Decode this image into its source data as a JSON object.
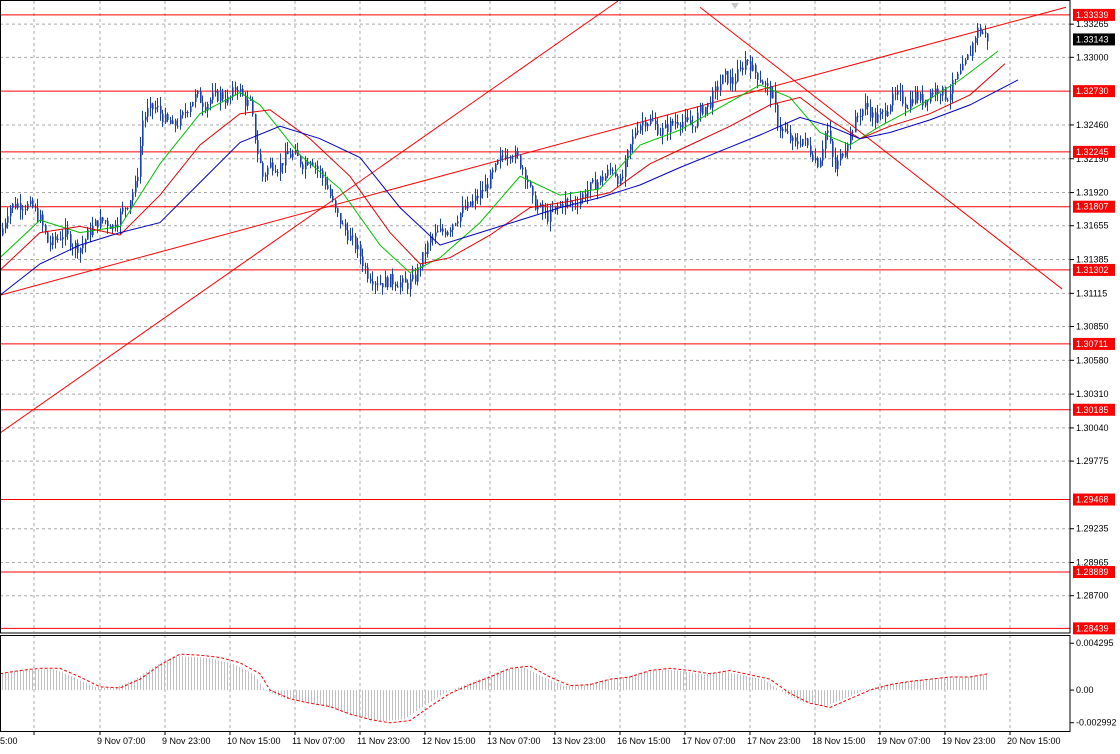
{
  "chart_data": {
    "type": "candlestick",
    "price_axis": {
      "ticks": [
        "1.33265",
        "1.33000",
        "1.32460",
        "1.32190",
        "1.31920",
        "1.31655",
        "1.31385",
        "1.31115",
        "1.30850",
        "1.30580",
        "1.30310",
        "1.30040",
        "1.29775",
        "1.29235",
        "1.28965",
        "1.28700"
      ],
      "ylim": [
        1.2841,
        1.3345
      ]
    },
    "current_price": "1.33143",
    "levels": [
      {
        "label": "1.33339",
        "value": 1.33339
      },
      {
        "label": "1.32730",
        "value": 1.3273
      },
      {
        "label": "1.32245",
        "value": 1.32245
      },
      {
        "label": "1.31807",
        "value": 1.31807
      },
      {
        "label": "1.31302",
        "value": 1.31302
      },
      {
        "label": "1.30711",
        "value": 1.30711
      },
      {
        "label": "1.30185",
        "value": 1.30185
      },
      {
        "label": "1.29468",
        "value": 1.29468
      },
      {
        "label": "1.28889",
        "value": 1.28889
      },
      {
        "label": "1.28439",
        "value": 1.28439
      }
    ],
    "time_axis": [
      "5:00",
      "9 Nov 07:00",
      "9 Nov 23:00",
      "10 Nov 15:00",
      "11 Nov 07:00",
      "11 Nov 23:00",
      "12 Nov 15:00",
      "13 Nov 07:00",
      "13 Nov 23:00",
      "16 Nov 15:00",
      "17 Nov 07:00",
      "17 Nov 23:00",
      "18 Nov 15:00",
      "19 Nov 07:00",
      "19 Nov 23:00",
      "20 Nov 15:00"
    ],
    "close_path": [
      [
        0,
        1.3158
      ],
      [
        8,
        1.318
      ],
      [
        16,
        1.3183
      ],
      [
        24,
        1.3182
      ],
      [
        32,
        1.318
      ],
      [
        40,
        1.317
      ],
      [
        48,
        1.315
      ],
      [
        56,
        1.3155
      ],
      [
        64,
        1.316
      ],
      [
        72,
        1.315
      ],
      [
        80,
        1.3148
      ],
      [
        88,
        1.316
      ],
      [
        96,
        1.3168
      ],
      [
        104,
        1.317
      ],
      [
        112,
        1.3165
      ],
      [
        120,
        1.3175
      ],
      [
        128,
        1.3185
      ],
      [
        136,
        1.32
      ],
      [
        142,
        1.325
      ],
      [
        148,
        1.3258
      ],
      [
        156,
        1.326
      ],
      [
        164,
        1.325
      ],
      [
        172,
        1.3245
      ],
      [
        180,
        1.325
      ],
      [
        188,
        1.3262
      ],
      [
        196,
        1.327
      ],
      [
        204,
        1.3262
      ],
      [
        212,
        1.3268
      ],
      [
        220,
        1.327
      ],
      [
        228,
        1.3265
      ],
      [
        236,
        1.3278
      ],
      [
        244,
        1.3265
      ],
      [
        250,
        1.3262
      ],
      [
        256,
        1.3228
      ],
      [
        262,
        1.3205
      ],
      [
        270,
        1.3215
      ],
      [
        278,
        1.3212
      ],
      [
        286,
        1.3222
      ],
      [
        294,
        1.3222
      ],
      [
        302,
        1.3215
      ],
      [
        310,
        1.322
      ],
      [
        318,
        1.321
      ],
      [
        326,
        1.3198
      ],
      [
        334,
        1.3178
      ],
      [
        342,
        1.3165
      ],
      [
        350,
        1.3155
      ],
      [
        358,
        1.3145
      ],
      [
        366,
        1.3128
      ],
      [
        374,
        1.3122
      ],
      [
        382,
        1.312
      ],
      [
        390,
        1.3122
      ],
      [
        398,
        1.312
      ],
      [
        406,
        1.3118
      ],
      [
        414,
        1.3123
      ],
      [
        422,
        1.314
      ],
      [
        430,
        1.3155
      ],
      [
        438,
        1.316
      ],
      [
        446,
        1.3162
      ],
      [
        454,
        1.317
      ],
      [
        462,
        1.3178
      ],
      [
        470,
        1.3182
      ],
      [
        478,
        1.319
      ],
      [
        486,
        1.3198
      ],
      [
        494,
        1.321
      ],
      [
        502,
        1.3222
      ],
      [
        510,
        1.3225
      ],
      [
        518,
        1.3218
      ],
      [
        526,
        1.3205
      ],
      [
        532,
        1.3185
      ],
      [
        540,
        1.3178
      ],
      [
        548,
        1.3172
      ],
      [
        556,
        1.318
      ],
      [
        564,
        1.3185
      ],
      [
        572,
        1.3183
      ],
      [
        580,
        1.3188
      ],
      [
        588,
        1.3195
      ],
      [
        596,
        1.32
      ],
      [
        604,
        1.3205
      ],
      [
        612,
        1.3212
      ],
      [
        620,
        1.3198
      ],
      [
        628,
        1.3225
      ],
      [
        636,
        1.3245
      ],
      [
        644,
        1.325
      ],
      [
        652,
        1.3248
      ],
      [
        660,
        1.324
      ],
      [
        668,
        1.3245
      ],
      [
        676,
        1.325
      ],
      [
        684,
        1.3248
      ],
      [
        692,
        1.3245
      ],
      [
        700,
        1.3258
      ],
      [
        708,
        1.3262
      ],
      [
        716,
        1.3275
      ],
      [
        724,
        1.3285
      ],
      [
        732,
        1.328
      ],
      [
        740,
        1.329
      ],
      [
        746,
        1.33
      ],
      [
        752,
        1.329
      ],
      [
        758,
        1.3285
      ],
      [
        764,
        1.3278
      ],
      [
        772,
        1.3268
      ],
      [
        778,
        1.3245
      ],
      [
        786,
        1.3238
      ],
      [
        794,
        1.323
      ],
      [
        802,
        1.3235
      ],
      [
        810,
        1.3225
      ],
      [
        818,
        1.3215
      ],
      [
        826,
        1.3245
      ],
      [
        834,
        1.321
      ],
      [
        842,
        1.3225
      ],
      [
        850,
        1.324
      ],
      [
        858,
        1.3255
      ],
      [
        866,
        1.3262
      ],
      [
        874,
        1.325
      ],
      [
        882,
        1.3255
      ],
      [
        890,
        1.3265
      ],
      [
        898,
        1.327
      ],
      [
        906,
        1.3262
      ],
      [
        914,
        1.327
      ],
      [
        922,
        1.3265
      ],
      [
        930,
        1.3272
      ],
      [
        938,
        1.3275
      ],
      [
        946,
        1.3268
      ],
      [
        954,
        1.328
      ],
      [
        962,
        1.329
      ],
      [
        970,
        1.3305
      ],
      [
        976,
        1.3322
      ],
      [
        982,
        1.332
      ],
      [
        988,
        1.3314
      ]
    ],
    "moving_averages": [
      {
        "color": "#00c000",
        "path": [
          [
            0,
            1.314
          ],
          [
            40,
            1.317
          ],
          [
            80,
            1.316
          ],
          [
            120,
            1.3165
          ],
          [
            160,
            1.3215
          ],
          [
            200,
            1.3255
          ],
          [
            240,
            1.3272
          ],
          [
            260,
            1.3262
          ],
          [
            300,
            1.3222
          ],
          [
            340,
            1.3195
          ],
          [
            380,
            1.315
          ],
          [
            410,
            1.3128
          ],
          [
            440,
            1.314
          ],
          [
            480,
            1.3168
          ],
          [
            520,
            1.3205
          ],
          [
            560,
            1.319
          ],
          [
            600,
            1.3195
          ],
          [
            640,
            1.323
          ],
          [
            680,
            1.3242
          ],
          [
            720,
            1.326
          ],
          [
            760,
            1.3278
          ],
          [
            790,
            1.3268
          ],
          [
            820,
            1.324
          ],
          [
            850,
            1.323
          ],
          [
            880,
            1.3245
          ],
          [
            920,
            1.3262
          ],
          [
            960,
            1.3282
          ],
          [
            998,
            1.3305
          ]
        ]
      },
      {
        "color": "#e00000",
        "path": [
          [
            0,
            1.313
          ],
          [
            40,
            1.316
          ],
          [
            80,
            1.3165
          ],
          [
            120,
            1.3158
          ],
          [
            160,
            1.319
          ],
          [
            200,
            1.323
          ],
          [
            240,
            1.3255
          ],
          [
            270,
            1.3258
          ],
          [
            310,
            1.3235
          ],
          [
            350,
            1.3205
          ],
          [
            390,
            1.316
          ],
          [
            420,
            1.3135
          ],
          [
            450,
            1.314
          ],
          [
            490,
            1.3158
          ],
          [
            530,
            1.318
          ],
          [
            570,
            1.3185
          ],
          [
            610,
            1.3192
          ],
          [
            650,
            1.3215
          ],
          [
            690,
            1.323
          ],
          [
            730,
            1.3245
          ],
          [
            770,
            1.3262
          ],
          [
            800,
            1.3268
          ],
          [
            830,
            1.325
          ],
          [
            860,
            1.3235
          ],
          [
            890,
            1.3245
          ],
          [
            930,
            1.3255
          ],
          [
            970,
            1.327
          ],
          [
            1005,
            1.3295
          ]
        ]
      },
      {
        "color": "#0000c0",
        "path": [
          [
            0,
            1.311
          ],
          [
            40,
            1.3135
          ],
          [
            80,
            1.315
          ],
          [
            120,
            1.316
          ],
          [
            160,
            1.3168
          ],
          [
            200,
            1.32
          ],
          [
            240,
            1.3232
          ],
          [
            280,
            1.3245
          ],
          [
            320,
            1.3235
          ],
          [
            360,
            1.322
          ],
          [
            400,
            1.318
          ],
          [
            440,
            1.315
          ],
          [
            480,
            1.316
          ],
          [
            520,
            1.317
          ],
          [
            560,
            1.318
          ],
          [
            600,
            1.3188
          ],
          [
            640,
            1.3198
          ],
          [
            680,
            1.3212
          ],
          [
            720,
            1.3225
          ],
          [
            760,
            1.3238
          ],
          [
            800,
            1.3252
          ],
          [
            830,
            1.3245
          ],
          [
            860,
            1.3235
          ],
          [
            890,
            1.324
          ],
          [
            930,
            1.325
          ],
          [
            970,
            1.3262
          ],
          [
            1018,
            1.3282
          ]
        ]
      }
    ],
    "trend_lines": [
      {
        "color": "#ff0000",
        "from": [
          0,
          1.3
        ],
        "to": [
          618,
          1.3345
        ]
      },
      {
        "color": "#ff0000",
        "from": [
          0,
          1.311
        ],
        "to": [
          1066,
          1.334
        ]
      },
      {
        "color": "#ff0000",
        "from": [
          700,
          1.334
        ],
        "to": [
          1062,
          1.3115
        ]
      }
    ],
    "oscillator": {
      "ticks": [
        "0.004295",
        "0.00",
        "-0.002992"
      ],
      "ylim": [
        -0.0032,
        0.0045
      ],
      "signal_color": "#ff0000",
      "histogram_color": "#c0c0c0",
      "histogram_x_range": [
        0,
        988
      ],
      "signal_points": [
        [
          0,
          0.0015
        ],
        [
          20,
          0.0018
        ],
        [
          40,
          0.002
        ],
        [
          60,
          0.002
        ],
        [
          80,
          0.0012
        ],
        [
          100,
          0.0003
        ],
        [
          120,
          0.0002
        ],
        [
          140,
          0.001
        ],
        [
          160,
          0.0023
        ],
        [
          180,
          0.0033
        ],
        [
          200,
          0.0032
        ],
        [
          220,
          0.003
        ],
        [
          240,
          0.0025
        ],
        [
          260,
          0.0015
        ],
        [
          270,
          0.0
        ],
        [
          290,
          -0.0008
        ],
        [
          310,
          -0.0012
        ],
        [
          330,
          -0.0015
        ],
        [
          350,
          -0.0022
        ],
        [
          370,
          -0.0027
        ],
        [
          390,
          -0.003
        ],
        [
          410,
          -0.0028
        ],
        [
          430,
          -0.0015
        ],
        [
          450,
          -0.0003
        ],
        [
          470,
          0.0005
        ],
        [
          490,
          0.0012
        ],
        [
          510,
          0.002
        ],
        [
          530,
          0.0022
        ],
        [
          550,
          0.0012
        ],
        [
          570,
          0.0004
        ],
        [
          590,
          0.0005
        ],
        [
          610,
          0.001
        ],
        [
          630,
          0.0012
        ],
        [
          650,
          0.0018
        ],
        [
          670,
          0.002
        ],
        [
          690,
          0.0018
        ],
        [
          710,
          0.0015
        ],
        [
          730,
          0.0018
        ],
        [
          750,
          0.0014
        ],
        [
          770,
          0.001
        ],
        [
          790,
          -0.0003
        ],
        [
          810,
          -0.0012
        ],
        [
          830,
          -0.0016
        ],
        [
          850,
          -0.0008
        ],
        [
          870,
          0.0
        ],
        [
          890,
          0.0005
        ],
        [
          910,
          0.0008
        ],
        [
          930,
          0.001
        ],
        [
          950,
          0.0012
        ],
        [
          970,
          0.0012
        ],
        [
          988,
          0.0015
        ]
      ]
    }
  }
}
